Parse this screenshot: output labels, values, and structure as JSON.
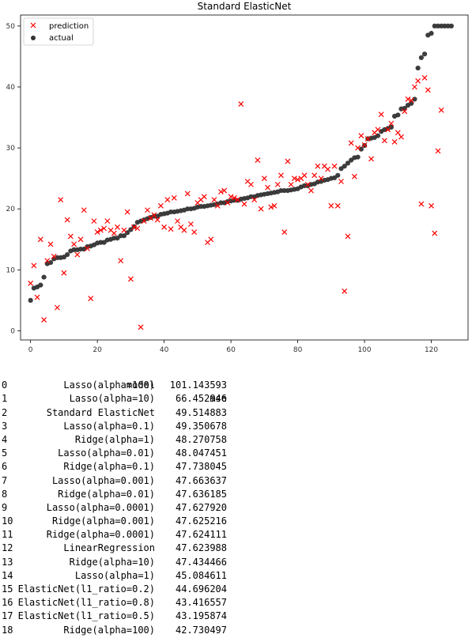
{
  "chart_data": {
    "type": "scatter",
    "title": "Standard ElasticNet",
    "xlim": [
      -3,
      131
    ],
    "ylim": [
      -1.5,
      51.8
    ],
    "x_ticks": [
      0,
      20,
      40,
      60,
      80,
      100,
      120
    ],
    "y_ticks": [
      0,
      10,
      20,
      30,
      40,
      50
    ],
    "legend_position": "top-left",
    "series": [
      {
        "name": "prediction",
        "marker": "x",
        "color": "#ff0000",
        "values": [
          7.8,
          10.7,
          5.5,
          15.0,
          1.8,
          11.5,
          14.2,
          12.2,
          3.8,
          21.5,
          9.5,
          18.2,
          15.5,
          14.2,
          12.5,
          15.0,
          19.8,
          13.5,
          5.3,
          18.0,
          16.2,
          16.5,
          16.8,
          18.0,
          16.5,
          16.0,
          17.0,
          11.5,
          16.5,
          19.5,
          8.5,
          17.0,
          16.8,
          0.6,
          18.0,
          19.8,
          18.5,
          19.0,
          18.2,
          20.5,
          17.0,
          21.5,
          16.7,
          21.8,
          18.0,
          17.0,
          16.5,
          22.5,
          17.5,
          16.2,
          21.0,
          21.5,
          22.0,
          14.5,
          15.0,
          21.5,
          20.5,
          22.8,
          23.0,
          21.0,
          22.0,
          21.8,
          21.5,
          37.2,
          20.8,
          24.5,
          24.0,
          21.5,
          28.0,
          20.0,
          25.0,
          23.5,
          20.3,
          20.5,
          24.0,
          25.5,
          16.2,
          27.8,
          24.0,
          25.0,
          24.8,
          25.0,
          25.5,
          24.0,
          23.0,
          25.5,
          27.0,
          25.0,
          27.0,
          26.5,
          20.5,
          27.0,
          20.5,
          24.5,
          6.5,
          15.5,
          30.8,
          25.3,
          30.0,
          32.0,
          30.5,
          31.5,
          28.2,
          32.5,
          33.0,
          35.5,
          31.2,
          33.0,
          34.0,
          31.0,
          32.5,
          31.8,
          36.0,
          38.0,
          37.8,
          40.0,
          41.0,
          20.8,
          41.5,
          39.5,
          20.5,
          16.0,
          29.5,
          36.2
        ]
      },
      {
        "name": "actual",
        "marker": "o",
        "color": "#333333",
        "values": [
          5.0,
          7.0,
          7.2,
          7.5,
          8.8,
          11.0,
          11.2,
          11.8,
          12.0,
          12.0,
          12.1,
          12.5,
          13.1,
          13.3,
          13.3,
          13.4,
          13.4,
          13.8,
          13.9,
          14.1,
          14.4,
          14.5,
          14.5,
          14.9,
          15.0,
          15.2,
          15.2,
          15.6,
          15.6,
          16.1,
          16.6,
          17.1,
          17.8,
          18.0,
          18.2,
          18.4,
          18.6,
          18.8,
          18.8,
          19.1,
          19.2,
          19.3,
          19.5,
          19.5,
          19.6,
          19.7,
          19.8,
          20.0,
          20.0,
          20.1,
          20.3,
          20.4,
          20.4,
          20.5,
          20.6,
          20.7,
          20.8,
          21.0,
          21.0,
          21.2,
          21.3,
          21.4,
          21.4,
          21.6,
          21.7,
          21.8,
          22.0,
          22.0,
          22.2,
          22.3,
          22.4,
          22.5,
          22.6,
          22.7,
          22.8,
          23.0,
          23.0,
          23.0,
          23.1,
          23.2,
          23.3,
          23.6,
          23.8,
          23.8,
          24.0,
          24.1,
          24.4,
          24.5,
          24.7,
          24.8,
          25.0,
          25.1,
          25.5,
          26.6,
          27.0,
          27.5,
          28.0,
          28.4,
          28.5,
          29.8,
          30.4,
          31.5,
          31.6,
          31.7,
          32.0,
          32.7,
          33.0,
          33.2,
          33.4,
          35.2,
          35.4,
          36.4,
          36.5,
          37.0,
          37.3,
          38.0,
          43.1,
          44.8,
          45.4,
          48.5,
          48.8,
          50.0,
          50.0,
          50.0,
          50.0,
          50.0,
          50.0
        ]
      }
    ]
  },
  "table": {
    "headers": {
      "model": "model",
      "mse": "mse"
    },
    "rows": [
      {
        "index": "0",
        "model": "Lasso(alpha=100)",
        "mse": "101.143593"
      },
      {
        "index": "1",
        "model": "Lasso(alpha=10)",
        "mse": "66.452946"
      },
      {
        "index": "2",
        "model": "Standard ElasticNet",
        "mse": "49.514883"
      },
      {
        "index": "3",
        "model": "Lasso(alpha=0.1)",
        "mse": "49.350678"
      },
      {
        "index": "4",
        "model": "Ridge(alpha=1)",
        "mse": "48.270758"
      },
      {
        "index": "5",
        "model": "Lasso(alpha=0.01)",
        "mse": "48.047451"
      },
      {
        "index": "6",
        "model": "Ridge(alpha=0.1)",
        "mse": "47.738045"
      },
      {
        "index": "7",
        "model": "Lasso(alpha=0.001)",
        "mse": "47.663637"
      },
      {
        "index": "8",
        "model": "Ridge(alpha=0.01)",
        "mse": "47.636185"
      },
      {
        "index": "9",
        "model": "Lasso(alpha=0.0001)",
        "mse": "47.627920"
      },
      {
        "index": "10",
        "model": "Ridge(alpha=0.001)",
        "mse": "47.625216"
      },
      {
        "index": "11",
        "model": "Ridge(alpha=0.0001)",
        "mse": "47.624111"
      },
      {
        "index": "12",
        "model": "LinearRegression",
        "mse": "47.623988"
      },
      {
        "index": "13",
        "model": "Ridge(alpha=10)",
        "mse": "47.434466"
      },
      {
        "index": "14",
        "model": "Lasso(alpha=1)",
        "mse": "45.084611"
      },
      {
        "index": "15",
        "model": "ElasticNet(l1_ratio=0.2)",
        "mse": "44.696204"
      },
      {
        "index": "16",
        "model": "ElasticNet(l1_ratio=0.8)",
        "mse": "43.416557"
      },
      {
        "index": "17",
        "model": "ElasticNet(l1_ratio=0.5)",
        "mse": "43.195874"
      },
      {
        "index": "18",
        "model": "Ridge(alpha=100)",
        "mse": "42.730497"
      }
    ]
  }
}
